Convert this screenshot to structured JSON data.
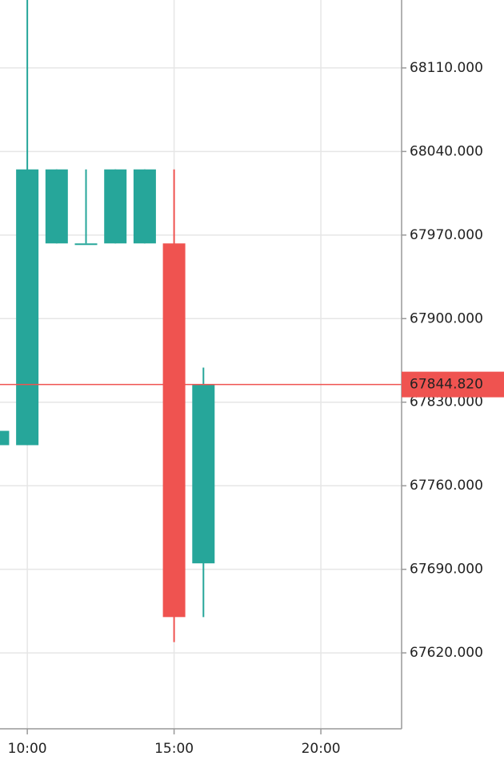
{
  "chart_data": {
    "type": "candlestick",
    "x": [
      9,
      10,
      11,
      12,
      13,
      14,
      15,
      16
    ],
    "open": [
      67794,
      67794,
      67963,
      67963,
      67963,
      67963,
      67963,
      67695
    ],
    "high": [
      67806,
      68170,
      68025,
      68025,
      68025,
      68025,
      68025,
      67859
    ],
    "low": [
      67794,
      67794,
      67963,
      67963,
      67963,
      67963,
      67629,
      67650
    ],
    "close": [
      67806,
      68025,
      68025,
      67963,
      68025,
      68025,
      67650,
      67845
    ],
    "up_color": "#26a69a",
    "down_color": "#ef5350",
    "xlim": [
      9.07,
      22.75
    ],
    "xticks": [
      {
        "value": 10,
        "label": "10:00"
      },
      {
        "value": 15,
        "label": "15:00"
      },
      {
        "value": 20,
        "label": "20:00"
      }
    ],
    "ylim": [
      67556.4,
      68166.9
    ],
    "yticks": [
      {
        "value": 67620,
        "label": "67620.000"
      },
      {
        "value": 67690,
        "label": "67690.000"
      },
      {
        "value": 67760,
        "label": "67760.000"
      },
      {
        "value": 67830,
        "label": "67830.000"
      },
      {
        "value": 67900,
        "label": "67900.000"
      },
      {
        "value": 67970,
        "label": "67970.000"
      },
      {
        "value": 68040,
        "label": "68040.000"
      },
      {
        "value": 68110,
        "label": "68110.000"
      }
    ],
    "last_price": {
      "value": 67844.82,
      "label": "67844.820"
    },
    "grid": true
  }
}
